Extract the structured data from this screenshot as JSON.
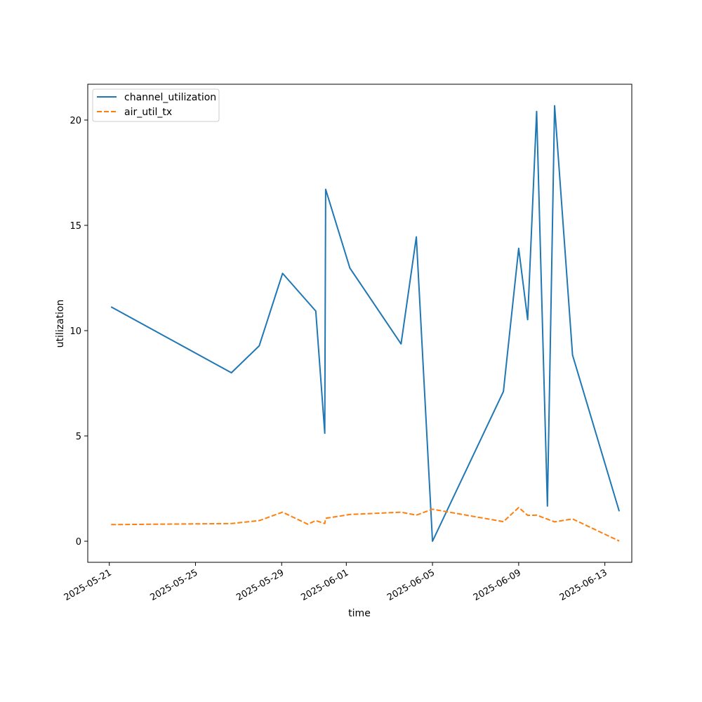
{
  "chart_data": {
    "type": "line",
    "title": "",
    "xlabel": "time",
    "ylabel": "utilization",
    "x_type": "date",
    "xlim": [
      "2025-05-20T00:00",
      "2025-06-14T06:00"
    ],
    "ylim": [
      -1,
      21.7
    ],
    "x_ticks": [
      "2025-05-21",
      "2025-05-25",
      "2025-05-29",
      "2025-06-01",
      "2025-06-05",
      "2025-06-09",
      "2025-06-13"
    ],
    "y_ticks": [
      0,
      5,
      10,
      15,
      20
    ],
    "grid": false,
    "legend_position": "top-left",
    "series": [
      {
        "name": "channel_utilization",
        "color": "#1f77b4",
        "dash": "solid",
        "points": [
          {
            "x": "2025-05-21T02:00",
            "y": 11.13
          },
          {
            "x": "2025-05-26T16:00",
            "y": 8.0
          },
          {
            "x": "2025-05-27T23:00",
            "y": 9.28
          },
          {
            "x": "2025-05-29T01:00",
            "y": 12.72
          },
          {
            "x": "2025-05-30T14:00",
            "y": 10.93
          },
          {
            "x": "2025-05-31T00:00",
            "y": 5.13
          },
          {
            "x": "2025-05-31T01:00",
            "y": 16.71
          },
          {
            "x": "2025-06-01T04:00",
            "y": 12.97
          },
          {
            "x": "2025-06-03T13:00",
            "y": 9.37
          },
          {
            "x": "2025-06-04T06:00",
            "y": 14.45
          },
          {
            "x": "2025-06-05T00:00",
            "y": 0.0
          },
          {
            "x": "2025-06-08T07:00",
            "y": 7.11
          },
          {
            "x": "2025-06-09T00:00",
            "y": 13.91
          },
          {
            "x": "2025-06-09T10:00",
            "y": 10.52
          },
          {
            "x": "2025-06-09T20:00",
            "y": 20.41
          },
          {
            "x": "2025-06-10T08:00",
            "y": 1.67
          },
          {
            "x": "2025-06-10T16:00",
            "y": 20.68
          },
          {
            "x": "2025-06-11T12:00",
            "y": 8.84
          },
          {
            "x": "2025-06-13T16:00",
            "y": 1.42
          }
        ]
      },
      {
        "name": "air_util_tx",
        "color": "#ff7f0e",
        "dash": "dashed",
        "points": [
          {
            "x": "2025-05-21T02:00",
            "y": 0.79
          },
          {
            "x": "2025-05-26T16:00",
            "y": 0.84
          },
          {
            "x": "2025-05-27T23:00",
            "y": 0.98
          },
          {
            "x": "2025-05-29T01:00",
            "y": 1.38
          },
          {
            "x": "2025-05-30T05:00",
            "y": 0.81
          },
          {
            "x": "2025-05-30T14:00",
            "y": 0.98
          },
          {
            "x": "2025-05-31T00:00",
            "y": 0.84
          },
          {
            "x": "2025-05-31T01:00",
            "y": 1.09
          },
          {
            "x": "2025-06-01T04:00",
            "y": 1.27
          },
          {
            "x": "2025-06-03T13:00",
            "y": 1.38
          },
          {
            "x": "2025-06-04T06:00",
            "y": 1.24
          },
          {
            "x": "2025-06-05T00:00",
            "y": 1.52
          },
          {
            "x": "2025-06-08T07:00",
            "y": 0.93
          },
          {
            "x": "2025-06-09T00:00",
            "y": 1.6
          },
          {
            "x": "2025-06-09T10:00",
            "y": 1.23
          },
          {
            "x": "2025-06-09T20:00",
            "y": 1.24
          },
          {
            "x": "2025-06-10T16:00",
            "y": 0.92
          },
          {
            "x": "2025-06-11T12:00",
            "y": 1.06
          },
          {
            "x": "2025-06-13T16:00",
            "y": 0.01
          }
        ]
      }
    ]
  }
}
